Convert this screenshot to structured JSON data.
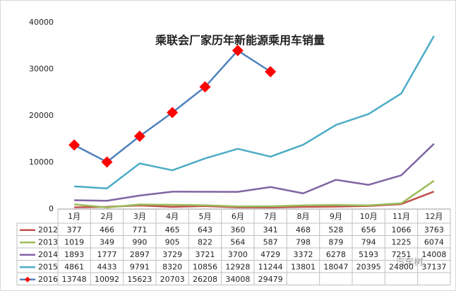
{
  "chart_data": {
    "type": "line",
    "title": "乘联会厂家历年新能源乘用车销量",
    "categories": [
      "1月",
      "2月",
      "3月",
      "4月",
      "5月",
      "6月",
      "7月",
      "8月",
      "9月",
      "10月",
      "11月",
      "12月"
    ],
    "series": [
      {
        "name": "2012",
        "color": "#c0504d",
        "values": [
          377,
          466,
          771,
          465,
          643,
          360,
          341,
          468,
          528,
          656,
          1066,
          3763
        ]
      },
      {
        "name": "2013",
        "color": "#9bbb59",
        "values": [
          1019,
          349,
          990,
          905,
          822,
          564,
          587,
          798,
          879,
          794,
          1225,
          6074
        ]
      },
      {
        "name": "2014",
        "color": "#8064a2",
        "values": [
          1893,
          1777,
          2897,
          3729,
          3721,
          3700,
          4729,
          3372,
          6278,
          5193,
          7251,
          14008
        ]
      },
      {
        "name": "2015",
        "color": "#4bacc6",
        "values": [
          4861,
          4433,
          9791,
          8320,
          10856,
          12928,
          11244,
          13801,
          18047,
          20395,
          24800,
          37137
        ]
      },
      {
        "name": "2016",
        "color": "#4f81bd",
        "marker": "diamond",
        "marker_color": "#ff0000",
        "values": [
          13748,
          10092,
          15623,
          20703,
          26208,
          34008,
          29479,
          null,
          null,
          null,
          null,
          null
        ]
      }
    ],
    "ylim": [
      0,
      40000
    ],
    "yticks": [
      0,
      10000,
      20000,
      30000,
      40000
    ],
    "grid": false,
    "watermark": "汽车树"
  }
}
